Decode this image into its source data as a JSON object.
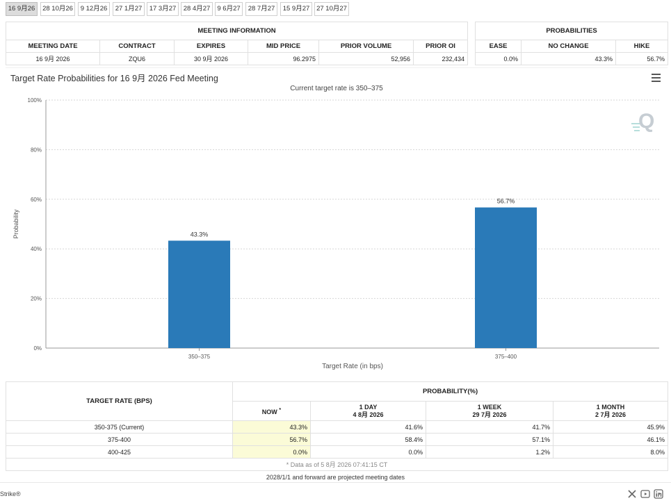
{
  "tabs": [
    "16 9月26",
    "28 10月26",
    "9 12月26",
    "27 1月27",
    "17 3月27",
    "28 4月27",
    "9 6月27",
    "28 7月27",
    "15 9月27",
    "27 10月27"
  ],
  "meeting_info": {
    "title": "MEETING INFORMATION",
    "columns": [
      "MEETING DATE",
      "CONTRACT",
      "EXPIRES",
      "MID PRICE",
      "PRIOR VOLUME",
      "PRIOR OI"
    ],
    "row": [
      "16 9月 2026",
      "ZQU6",
      "30 9月 2026",
      "96.2975",
      "52,956",
      "232,434"
    ]
  },
  "probabilities": {
    "title": "PROBABILITIES",
    "columns": [
      "EASE",
      "NO CHANGE",
      "HIKE"
    ],
    "row": [
      "0.0%",
      "43.3%",
      "56.7%"
    ]
  },
  "chart": {
    "title": "Target Rate Probabilities for 16 9月 2026 Fed Meeting",
    "subtitle": "Current target rate is 350–375",
    "menu_icon": "hamburger-menu-icon",
    "logo_icon": "q-logo-icon"
  },
  "chart_data": {
    "type": "bar",
    "categories": [
      "350–375",
      "375–400"
    ],
    "values": [
      43.3,
      56.7
    ],
    "data_labels": [
      "43.3%",
      "56.7%"
    ],
    "xlabel": "Target Rate (in bps)",
    "ylabel": "Probability",
    "ylim": [
      0,
      100
    ],
    "yticks": [
      0,
      20,
      40,
      60,
      80,
      100
    ],
    "ytick_labels": [
      "0%",
      "20%",
      "40%",
      "60%",
      "80%",
      "100%"
    ],
    "grid": true,
    "bar_color": "#2a7ab8"
  },
  "prob_table": {
    "rate_header": "TARGET RATE (BPS)",
    "prob_header": "PROBABILITY(%)",
    "periods": [
      {
        "label": "NOW",
        "date": ""
      },
      {
        "label": "1 DAY",
        "date": "4 8月 2026"
      },
      {
        "label": "1 WEEK",
        "date": "29 7月 2026"
      },
      {
        "label": "1 MONTH",
        "date": "2 7月 2026"
      }
    ],
    "now_marker": "*",
    "rows": [
      {
        "rate": "350-375 (Current)",
        "values": [
          "43.3%",
          "41.6%",
          "41.7%",
          "45.9%"
        ]
      },
      {
        "rate": "375-400",
        "values": [
          "56.7%",
          "58.4%",
          "57.1%",
          "46.1%"
        ]
      },
      {
        "rate": "400-425",
        "values": [
          "0.0%",
          "0.0%",
          "1.2%",
          "8.0%"
        ]
      }
    ],
    "note": "* Data as of 5 8月 2026 07:41:15 CT"
  },
  "footnote": "2028/1/1 and forward are projected meeting dates",
  "brand": "Strike®",
  "social_icons": [
    "x-icon",
    "youtube-icon",
    "linkedin-icon"
  ],
  "colors": {
    "now_highlight": "#fbfbd7",
    "active_tab": "#dcdcdc",
    "bar": "#2a7ab8"
  }
}
